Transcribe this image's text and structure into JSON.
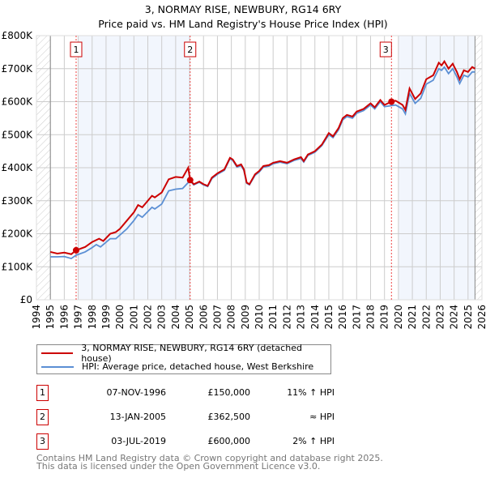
{
  "title": "3, NORMAY RISE, NEWBURY, RG14 6RY",
  "subtitle": "Price paid vs. HM Land Registry's House Price Index (HPI)",
  "chart_data": {
    "type": "line",
    "xlim": [
      1994,
      2026
    ],
    "ylim": [
      0,
      800000
    ],
    "x_ticks": [
      "1994",
      "1995",
      "1996",
      "1997",
      "1998",
      "1999",
      "2000",
      "2001",
      "2002",
      "2003",
      "2004",
      "2005",
      "2006",
      "2007",
      "2008",
      "2009",
      "2010",
      "2011",
      "2012",
      "2013",
      "2014",
      "2015",
      "2016",
      "2017",
      "2018",
      "2019",
      "2020",
      "2021",
      "2022",
      "2023",
      "2024",
      "2025",
      "2026"
    ],
    "y_ticks": [
      {
        "v": 0,
        "label": "£0"
      },
      {
        "v": 100000,
        "label": "£100K"
      },
      {
        "v": 200000,
        "label": "£200K"
      },
      {
        "v": 300000,
        "label": "£300K"
      },
      {
        "v": 400000,
        "label": "£400K"
      },
      {
        "v": 500000,
        "label": "£500K"
      },
      {
        "v": 600000,
        "label": "£600K"
      },
      {
        "v": 700000,
        "label": "£700K"
      },
      {
        "v": 800000,
        "label": "£800K"
      }
    ],
    "grid": true,
    "shaded_ranges": [
      [
        1997,
        2005
      ],
      [
        2020,
        2025.5
      ]
    ],
    "hatched_ranges": [
      [
        1994,
        1995
      ],
      [
        2025.5,
        2026
      ]
    ],
    "series": [
      {
        "name": "3, NORMAY RISE, NEWBURY, RG14 6RY (detached house)",
        "color": "#cc0000",
        "x": [
          1995,
          1995.5,
          1996,
          1996.5,
          1996.85,
          1997.5,
          1998,
          1998.5,
          1998.8,
          1999.3,
          1999.7,
          2000,
          2000.5,
          2001,
          2001.3,
          2001.6,
          2002,
          2002.3,
          2002.5,
          2003,
          2003.5,
          2004,
          2004.5,
          2004.9,
          2005.04,
          2005.3,
          2005.7,
          2006,
          2006.3,
          2006.6,
          2007,
          2007.5,
          2007.9,
          2008.1,
          2008.4,
          2008.7,
          2008.9,
          2009.1,
          2009.3,
          2009.7,
          2010,
          2010.3,
          2010.7,
          2011,
          2011.5,
          2012,
          2012.5,
          2013,
          2013.2,
          2013.5,
          2014,
          2014.5,
          2015,
          2015.3,
          2015.7,
          2016,
          2016.3,
          2016.7,
          2017,
          2017.5,
          2018,
          2018.3,
          2018.7,
          2019,
          2019.5,
          2019.8,
          2020.3,
          2020.5,
          2020.8,
          2021.2,
          2021.6,
          2022,
          2022.5,
          2022.9,
          2023.1,
          2023.3,
          2023.6,
          2023.9,
          2024.2,
          2024.4,
          2024.7,
          2025,
          2025.3,
          2025.5
        ],
        "y": [
          145,
          140,
          143,
          138,
          150,
          160,
          175,
          185,
          178,
          200,
          205,
          215,
          240,
          265,
          287,
          280,
          300,
          315,
          310,
          325,
          365,
          372,
          370,
          400,
          362.5,
          350,
          358,
          350,
          345,
          370,
          383,
          395,
          430,
          425,
          405,
          410,
          395,
          355,
          350,
          380,
          390,
          405,
          408,
          415,
          420,
          415,
          425,
          432,
          420,
          440,
          450,
          470,
          505,
          495,
          520,
          550,
          560,
          555,
          570,
          578,
          595,
          583,
          605,
          590,
          600,
          603,
          590,
          575,
          640,
          608,
          625,
          668,
          680,
          718,
          710,
          722,
          700,
          715,
          690,
          668,
          695,
          690,
          705,
          700
        ]
      },
      {
        "name": "HPI: Average price, detached house, West Berkshire",
        "color": "#5b8fd4",
        "x": [
          1995,
          1995.5,
          1996,
          1996.5,
          1996.85,
          1997.5,
          1998,
          1998.3,
          1998.6,
          1999.3,
          1999.7,
          2000.5,
          2001,
          2001.3,
          2001.6,
          2002.3,
          2002.5,
          2003,
          2003.5,
          2004,
          2004.5,
          2004.9,
          2005.04,
          2005.3,
          2005.7,
          2006,
          2006.3,
          2006.6,
          2007,
          2007.5,
          2007.9,
          2008.1,
          2008.4,
          2008.7,
          2008.9,
          2009.1,
          2009.3,
          2009.7,
          2010,
          2010.3,
          2010.7,
          2011,
          2011.5,
          2012,
          2012.5,
          2013,
          2013.2,
          2013.5,
          2014,
          2014.5,
          2015,
          2015.3,
          2015.7,
          2016,
          2016.3,
          2016.7,
          2017,
          2017.5,
          2018,
          2018.3,
          2018.7,
          2019,
          2019.5,
          2019.8,
          2020.3,
          2020.5,
          2020.8,
          2021.2,
          2021.6,
          2022,
          2022.5,
          2022.9,
          2023.1,
          2023.3,
          2023.6,
          2023.9,
          2024.2,
          2024.4,
          2024.7,
          2025,
          2025.3,
          2025.5
        ],
        "y": [
          130,
          130,
          131,
          125,
          135,
          145,
          158,
          167,
          160,
          185,
          185,
          215,
          240,
          258,
          250,
          280,
          275,
          290,
          330,
          335,
          337,
          355,
          360,
          348,
          356,
          348,
          343,
          367,
          380,
          392,
          427,
          422,
          402,
          406,
          392,
          353,
          348,
          377,
          387,
          402,
          405,
          412,
          417,
          412,
          422,
          428,
          417,
          437,
          447,
          467,
          500,
          491,
          515,
          545,
          555,
          550,
          565,
          573,
          590,
          578,
          600,
          585,
          588,
          590,
          578,
          563,
          625,
          595,
          610,
          653,
          665,
          700,
          695,
          705,
          685,
          700,
          675,
          655,
          680,
          675,
          690,
          690
        ]
      }
    ],
    "sales": [
      {
        "label": "1",
        "x": 1996.85,
        "y": 150
      },
      {
        "label": "2",
        "x": 2005.04,
        "y": 362.5
      },
      {
        "label": "3",
        "x": 2019.5,
        "y": 600
      }
    ]
  },
  "legend": {
    "property": "3, NORMAY RISE, NEWBURY, RG14 6RY (detached house)",
    "hpi": "HPI: Average price, detached house, West Berkshire"
  },
  "transactions": [
    {
      "num": "1",
      "date": "07-NOV-1996",
      "price": "£150,000",
      "hpi": "11% ↑ HPI"
    },
    {
      "num": "2",
      "date": "13-JAN-2005",
      "price": "£362,500",
      "hpi": "≈ HPI"
    },
    {
      "num": "3",
      "date": "03-JUL-2019",
      "price": "£600,000",
      "hpi": "2% ↑ HPI"
    }
  ],
  "footer": {
    "line1": "Contains HM Land Registry data © Crown copyright and database right 2025.",
    "line2": "This data is licensed under the Open Government Licence v3.0."
  }
}
